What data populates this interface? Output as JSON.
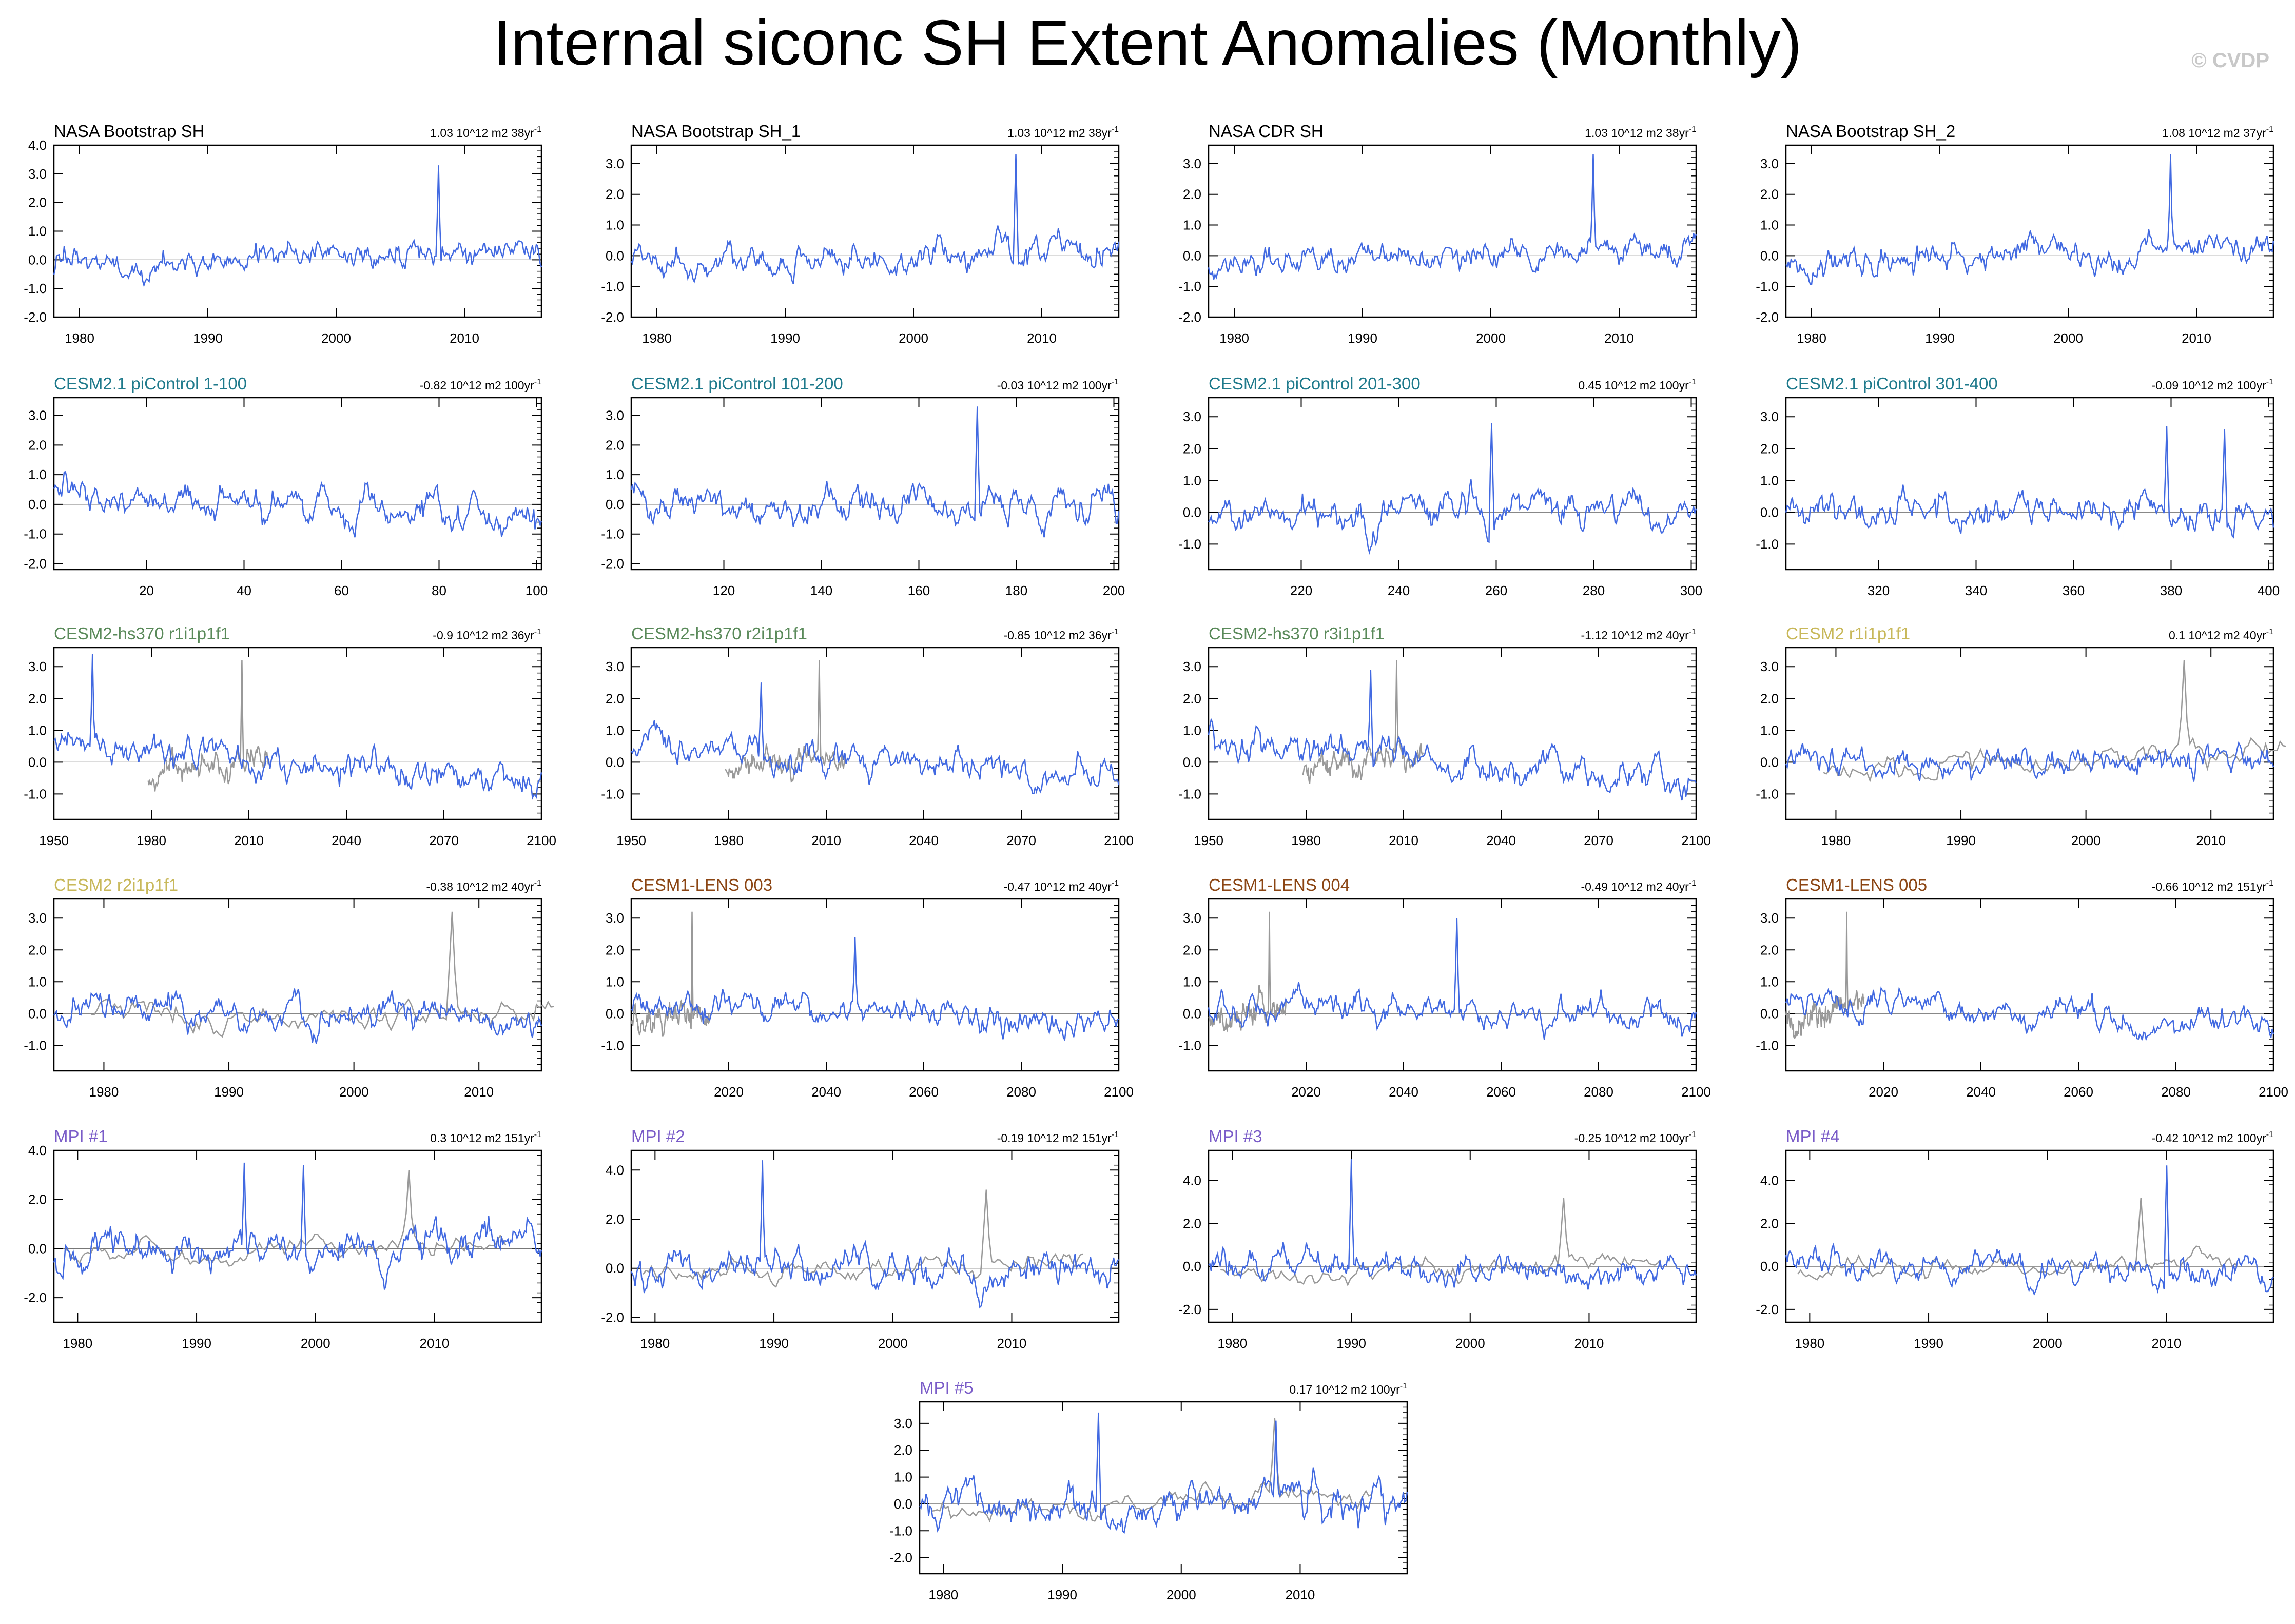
{
  "title": "Internal siconc SH Extent Anomalies (Monthly)",
  "credit": "© CVDP",
  "colors": {
    "line_main": "#4169e1",
    "line_obs": "#999999",
    "nasa": "#000000",
    "cesm21_pi": "#1f7a8c",
    "cesm2_hs370": "#5a8a5a",
    "cesm2": "#c8b85a",
    "cesm1_lens": "#8b4513",
    "mpi": "#7a5cc8"
  },
  "chart_data": [
    {
      "type": "line",
      "title": "NASA Bootstrap SH",
      "trend": "1.03 10^12 m2 38yr",
      "trend_sup": "-1",
      "xlim": [
        1978,
        2016
      ],
      "ylim": [
        -2,
        4
      ],
      "xticks": [
        "1980",
        "1990",
        "2000",
        "2010"
      ],
      "xtickvals": [
        1980,
        1990,
        2000,
        2010
      ],
      "yticks": [
        "4.0",
        "3.0",
        "2.0",
        "1.0",
        "0.0",
        "-1.0",
        "-2.0"
      ],
      "ytickvals": [
        4,
        3,
        2,
        1,
        0,
        -1,
        -2
      ],
      "obs": false,
      "color": "nasa",
      "seed": 11,
      "amp": 0.55,
      "trend_slope": 0.6,
      "spikes": [
        [
          2008,
          3.3
        ]
      ]
    },
    {
      "type": "line",
      "title": "NASA Bootstrap SH_1",
      "trend": "1.03 10^12 m2 38yr",
      "trend_sup": "-1",
      "xlim": [
        1978,
        2016
      ],
      "ylim": [
        -2,
        3.6
      ],
      "xticks": [
        "1980",
        "1990",
        "2000",
        "2010"
      ],
      "xtickvals": [
        1980,
        1990,
        2000,
        2010
      ],
      "yticks": [
        "3.0",
        "2.0",
        "1.0",
        "0.0",
        "-1.0",
        "-2.0"
      ],
      "ytickvals": [
        3,
        2,
        1,
        0,
        -1,
        -2
      ],
      "obs": false,
      "color": "nasa",
      "seed": 12,
      "amp": 0.55,
      "trend_slope": 0.6,
      "spikes": [
        [
          2008,
          3.3
        ]
      ]
    },
    {
      "type": "line",
      "title": "NASA CDR SH",
      "trend": "1.03 10^12 m2 38yr",
      "trend_sup": "-1",
      "xlim": [
        1978,
        2016
      ],
      "ylim": [
        -2,
        3.6
      ],
      "xticks": [
        "1980",
        "1990",
        "2000",
        "2010"
      ],
      "xtickvals": [
        1980,
        1990,
        2000,
        2010
      ],
      "yticks": [
        "3.0",
        "2.0",
        "1.0",
        "0.0",
        "-1.0",
        "-2.0"
      ],
      "ytickvals": [
        3,
        2,
        1,
        0,
        -1,
        -2
      ],
      "obs": false,
      "color": "nasa",
      "seed": 13,
      "amp": 0.55,
      "trend_slope": 0.6,
      "spikes": [
        [
          2008,
          3.3
        ]
      ]
    },
    {
      "type": "line",
      "title": "NASA Bootstrap SH_2",
      "trend": "1.08 10^12 m2 37yr",
      "trend_sup": "-1",
      "xlim": [
        1978,
        2016
      ],
      "ylim": [
        -2,
        3.6
      ],
      "xticks": [
        "1980",
        "1990",
        "2000",
        "2010"
      ],
      "xtickvals": [
        1980,
        1990,
        2000,
        2010
      ],
      "yticks": [
        "3.0",
        "2.0",
        "1.0",
        "0.0",
        "-1.0",
        "-2.0"
      ],
      "ytickvals": [
        3,
        2,
        1,
        0,
        -1,
        -2
      ],
      "obs": false,
      "color": "nasa",
      "seed": 14,
      "amp": 0.55,
      "trend_slope": 0.6,
      "spikes": [
        [
          2008,
          3.3
        ]
      ]
    },
    {
      "type": "line",
      "title": "CESM2.1 piControl 1-100",
      "trend": "-0.82 10^12 m2 100yr",
      "trend_sup": "-1",
      "xlim": [
        1,
        101
      ],
      "ylim": [
        -2.2,
        3.6
      ],
      "xticks": [
        "20",
        "40",
        "60",
        "80",
        "100"
      ],
      "xtickvals": [
        20,
        40,
        60,
        80,
        100
      ],
      "yticks": [
        "3.0",
        "2.0",
        "1.0",
        "0.0",
        "-1.0",
        "-2.0"
      ],
      "ytickvals": [
        3,
        2,
        1,
        0,
        -1,
        -2
      ],
      "obs": false,
      "color": "cesm21_pi",
      "seed": 21,
      "amp": 0.7,
      "trend_slope": -0.8,
      "spikes": []
    },
    {
      "type": "line",
      "title": "CESM2.1 piControl 101-200",
      "trend": "-0.03 10^12 m2 100yr",
      "trend_sup": "-1",
      "xlim": [
        101,
        201
      ],
      "ylim": [
        -2.2,
        3.6
      ],
      "xticks": [
        "120",
        "140",
        "160",
        "180",
        "200"
      ],
      "xtickvals": [
        120,
        140,
        160,
        180,
        200
      ],
      "yticks": [
        "3.0",
        "2.0",
        "1.0",
        "0.0",
        "-1.0",
        "-2.0"
      ],
      "ytickvals": [
        3,
        2,
        1,
        0,
        -1,
        -2
      ],
      "obs": false,
      "color": "cesm21_pi",
      "seed": 22,
      "amp": 0.7,
      "trend_slope": 0,
      "spikes": [
        [
          172,
          3.3
        ]
      ]
    },
    {
      "type": "line",
      "title": "CESM2.1 piControl 201-300",
      "trend": "0.45 10^12 m2 100yr",
      "trend_sup": "-1",
      "xlim": [
        201,
        301
      ],
      "ylim": [
        -1.8,
        3.6
      ],
      "xticks": [
        "220",
        "240",
        "260",
        "280",
        "300"
      ],
      "xtickvals": [
        220,
        240,
        260,
        280,
        300
      ],
      "yticks": [
        "3.0",
        "2.0",
        "1.0",
        "0.0",
        "-1.0"
      ],
      "ytickvals": [
        3,
        2,
        1,
        0,
        -1
      ],
      "obs": false,
      "color": "cesm21_pi",
      "seed": 23,
      "amp": 0.6,
      "trend_slope": 0.4,
      "spikes": [
        [
          259,
          2.8
        ]
      ]
    },
    {
      "type": "line",
      "title": "CESM2.1 piControl 301-400",
      "trend": "-0.09 10^12 m2 100yr",
      "trend_sup": "-1",
      "xlim": [
        301,
        401
      ],
      "ylim": [
        -1.8,
        3.6
      ],
      "xticks": [
        "320",
        "340",
        "360",
        "380",
        "400"
      ],
      "xtickvals": [
        320,
        340,
        360,
        380,
        400
      ],
      "yticks": [
        "3.0",
        "2.0",
        "1.0",
        "0.0",
        "-1.0"
      ],
      "ytickvals": [
        3,
        2,
        1,
        0,
        -1
      ],
      "obs": false,
      "color": "cesm21_pi",
      "seed": 24,
      "amp": 0.6,
      "trend_slope": 0,
      "spikes": [
        [
          379,
          2.7
        ],
        [
          391,
          2.6
        ]
      ]
    },
    {
      "type": "line",
      "title": "CESM2-hs370 r1i1p1f1",
      "trend": "-0.9 10^12 m2 36yr",
      "trend_sup": "-1",
      "xlim": [
        1950,
        2100
      ],
      "ylim": [
        -1.8,
        3.6
      ],
      "xticks": [
        "1950",
        "1980",
        "2010",
        "2040",
        "2070",
        "2100"
      ],
      "xtickvals": [
        1950,
        1980,
        2010,
        2040,
        2070,
        2100
      ],
      "yticks": [
        "3.0",
        "2.0",
        "1.0",
        "0.0",
        "-1.0"
      ],
      "ytickvals": [
        3,
        2,
        1,
        0,
        -1
      ],
      "obs": true,
      "obs_range": [
        1979,
        2016
      ],
      "color": "cesm2_hs370",
      "seed": 31,
      "amp": 0.6,
      "trend_slope": -1.2,
      "spikes": [
        [
          1962,
          3.4
        ]
      ]
    },
    {
      "type": "line",
      "title": "CESM2-hs370 r2i1p1f1",
      "trend": "-0.85 10^12 m2 36yr",
      "trend_sup": "-1",
      "xlim": [
        1950,
        2100
      ],
      "ylim": [
        -1.8,
        3.6
      ],
      "xticks": [
        "1950",
        "1980",
        "2010",
        "2040",
        "2070",
        "2100"
      ],
      "xtickvals": [
        1950,
        1980,
        2010,
        2040,
        2070,
        2100
      ],
      "yticks": [
        "3.0",
        "2.0",
        "1.0",
        "0.0",
        "-1.0"
      ],
      "ytickvals": [
        3,
        2,
        1,
        0,
        -1
      ],
      "obs": true,
      "obs_range": [
        1979,
        2016
      ],
      "color": "cesm2_hs370",
      "seed": 32,
      "amp": 0.55,
      "trend_slope": -1,
      "spikes": [
        [
          1990,
          2.5
        ]
      ]
    },
    {
      "type": "line",
      "title": "CESM2-hs370 r3i1p1f1",
      "trend": "-1.12 10^12 m2 40yr",
      "trend_sup": "-1",
      "xlim": [
        1950,
        2100
      ],
      "ylim": [
        -1.8,
        3.6
      ],
      "xticks": [
        "1950",
        "1980",
        "2010",
        "2040",
        "2070",
        "2100"
      ],
      "xtickvals": [
        1950,
        1980,
        2010,
        2040,
        2070,
        2100
      ],
      "yticks": [
        "3.0",
        "2.0",
        "1.0",
        "0.0",
        "-1.0"
      ],
      "ytickvals": [
        3,
        2,
        1,
        0,
        -1
      ],
      "obs": true,
      "obs_range": [
        1979,
        2016
      ],
      "color": "cesm2_hs370",
      "seed": 33,
      "amp": 0.6,
      "trend_slope": -1.3,
      "spikes": [
        [
          2000,
          2.9
        ]
      ]
    },
    {
      "type": "line",
      "title": "CESM2 r1i1p1f1",
      "trend": "0.1 10^12 m2 40yr",
      "trend_sup": "-1",
      "xlim": [
        1976,
        2015
      ],
      "ylim": [
        -1.8,
        3.6
      ],
      "xticks": [
        "1980",
        "1990",
        "2000",
        "2010"
      ],
      "xtickvals": [
        1980,
        1990,
        2000,
        2010
      ],
      "yticks": [
        "3.0",
        "2.0",
        "1.0",
        "0.0",
        "-1.0"
      ],
      "ytickvals": [
        3,
        2,
        1,
        0,
        -1
      ],
      "obs": true,
      "obs_range": [
        1979,
        2016
      ],
      "color": "cesm2",
      "seed": 34,
      "amp": 0.5,
      "trend_slope": 0.1,
      "spikes": []
    },
    {
      "type": "line",
      "title": "CESM2 r2i1p1f1",
      "trend": "-0.38 10^12 m2 40yr",
      "trend_sup": "-1",
      "xlim": [
        1976,
        2015
      ],
      "ylim": [
        -1.8,
        3.6
      ],
      "xticks": [
        "1980",
        "1990",
        "2000",
        "2010"
      ],
      "xtickvals": [
        1980,
        1990,
        2000,
        2010
      ],
      "yticks": [
        "3.0",
        "2.0",
        "1.0",
        "0.0",
        "-1.0"
      ],
      "ytickvals": [
        3,
        2,
        1,
        0,
        -1
      ],
      "obs": true,
      "obs_range": [
        1979,
        2016
      ],
      "color": "cesm2",
      "seed": 41,
      "amp": 0.55,
      "trend_slope": -0.4,
      "spikes": []
    },
    {
      "type": "line",
      "title": "CESM1-LENS 003",
      "trend": "-0.47 10^12 m2 40yr",
      "trend_sup": "-1",
      "xlim": [
        2000,
        2100
      ],
      "ylim": [
        -1.8,
        3.6
      ],
      "xticks": [
        "2020",
        "2040",
        "2060",
        "2080",
        "2100"
      ],
      "xtickvals": [
        2020,
        2040,
        2060,
        2080,
        2100
      ],
      "yticks": [
        "3.0",
        "2.0",
        "1.0",
        "0.0",
        "-1.0"
      ],
      "ytickvals": [
        3,
        2,
        1,
        0,
        -1
      ],
      "obs": true,
      "obs_range": [
        2000,
        2016
      ],
      "color": "cesm1_lens",
      "seed": 42,
      "amp": 0.5,
      "trend_slope": -0.6,
      "spikes": [
        [
          2046,
          2.4
        ]
      ]
    },
    {
      "type": "line",
      "title": "CESM1-LENS 004",
      "trend": "-0.49 10^12 m2 40yr",
      "trend_sup": "-1",
      "xlim": [
        2000,
        2100
      ],
      "ylim": [
        -1.8,
        3.6
      ],
      "xticks": [
        "2020",
        "2040",
        "2060",
        "2080",
        "2100"
      ],
      "xtickvals": [
        2020,
        2040,
        2060,
        2080,
        2100
      ],
      "yticks": [
        "3.0",
        "2.0",
        "1.0",
        "0.0",
        "-1.0"
      ],
      "ytickvals": [
        3,
        2,
        1,
        0,
        -1
      ],
      "obs": true,
      "obs_range": [
        2000,
        2016
      ],
      "color": "cesm1_lens",
      "seed": 43,
      "amp": 0.5,
      "trend_slope": -0.6,
      "spikes": [
        [
          2051,
          3.0
        ]
      ]
    },
    {
      "type": "line",
      "title": "CESM1-LENS 005",
      "trend": "-0.66 10^12 m2 151yr",
      "trend_sup": "-1",
      "xlim": [
        2000,
        2100
      ],
      "ylim": [
        -1.8,
        3.6
      ],
      "xticks": [
        "2020",
        "2040",
        "2060",
        "2080",
        "2100"
      ],
      "xtickvals": [
        2020,
        2040,
        2060,
        2080,
        2100
      ],
      "yticks": [
        "3.0",
        "2.0",
        "1.0",
        "0.0",
        "-1.0"
      ],
      "ytickvals": [
        3,
        2,
        1,
        0,
        -1
      ],
      "obs": true,
      "obs_range": [
        2000,
        2016
      ],
      "color": "cesm1_lens",
      "seed": 44,
      "amp": 0.5,
      "trend_slope": -0.7,
      "spikes": []
    },
    {
      "type": "line",
      "title": "MPI #1",
      "trend": "0.3 10^12 m2 151yr",
      "trend_sup": "-1",
      "xlim": [
        1978,
        2019
      ],
      "ylim": [
        -3,
        4
      ],
      "xticks": [
        "1980",
        "1990",
        "2000",
        "2010"
      ],
      "xtickvals": [
        1980,
        1990,
        2000,
        2010
      ],
      "yticks": [
        "4.0",
        "2.0",
        "0.0",
        "-2.0"
      ],
      "ytickvals": [
        4,
        2,
        0,
        -2
      ],
      "obs": true,
      "obs_range": [
        1979,
        2016
      ],
      "color": "mpi",
      "seed": 51,
      "amp": 0.9,
      "trend_slope": 0.3,
      "spikes": [
        [
          1994,
          3.5
        ],
        [
          1999,
          3.4
        ]
      ]
    },
    {
      "type": "line",
      "title": "MPI #2",
      "trend": "-0.19 10^12 m2 151yr",
      "trend_sup": "-1",
      "xlim": [
        1978,
        2019
      ],
      "ylim": [
        -2.2,
        4.8
      ],
      "xticks": [
        "1980",
        "1990",
        "2000",
        "2010"
      ],
      "xtickvals": [
        1980,
        1990,
        2000,
        2010
      ],
      "yticks": [
        "4.0",
        "2.0",
        "0.0",
        "-2.0"
      ],
      "ytickvals": [
        4,
        2,
        0,
        -2
      ],
      "obs": true,
      "obs_range": [
        1979,
        2016
      ],
      "color": "mpi",
      "seed": 52,
      "amp": 0.8,
      "trend_slope": -0.2,
      "spikes": [
        [
          1989,
          4.4
        ]
      ]
    },
    {
      "type": "line",
      "title": "MPI #3",
      "trend": "-0.25 10^12 m2 100yr",
      "trend_sup": "-1",
      "xlim": [
        1978,
        2019
      ],
      "ylim": [
        -2.6,
        5.4
      ],
      "xticks": [
        "1980",
        "1990",
        "2000",
        "2010"
      ],
      "xtickvals": [
        1980,
        1990,
        2000,
        2010
      ],
      "yticks": [
        "4.0",
        "2.0",
        "0.0",
        "-2.0"
      ],
      "ytickvals": [
        4,
        2,
        0,
        -2
      ],
      "obs": true,
      "obs_range": [
        1979,
        2016
      ],
      "color": "mpi",
      "seed": 53,
      "amp": 0.8,
      "trend_slope": -0.25,
      "spikes": [
        [
          1990,
          5.0
        ]
      ]
    },
    {
      "type": "line",
      "title": "MPI #4",
      "trend": "-0.42 10^12 m2 100yr",
      "trend_sup": "-1",
      "xlim": [
        1978,
        2019
      ],
      "ylim": [
        -2.6,
        5.4
      ],
      "xticks": [
        "1980",
        "1990",
        "2000",
        "2010"
      ],
      "xtickvals": [
        1980,
        1990,
        2000,
        2010
      ],
      "yticks": [
        "4.0",
        "2.0",
        "0.0",
        "-2.0"
      ],
      "ytickvals": [
        4,
        2,
        0,
        -2
      ],
      "obs": true,
      "obs_range": [
        1979,
        2016
      ],
      "color": "mpi",
      "seed": 54,
      "amp": 0.8,
      "trend_slope": -0.4,
      "spikes": [
        [
          2010,
          4.7
        ]
      ]
    },
    {
      "type": "line",
      "title": "MPI #5",
      "trend": "0.17 10^12 m2 100yr",
      "trend_sup": "-1",
      "xlim": [
        1978,
        2019
      ],
      "ylim": [
        -2.6,
        3.8
      ],
      "xticks": [
        "1980",
        "1990",
        "2000",
        "2010"
      ],
      "xtickvals": [
        1980,
        1990,
        2000,
        2010
      ],
      "yticks": [
        "3.0",
        "2.0",
        "1.0",
        "0.0",
        "-1.0",
        "-2.0"
      ],
      "ytickvals": [
        3,
        2,
        1,
        0,
        -1,
        -2
      ],
      "obs": true,
      "obs_range": [
        1979,
        2016
      ],
      "color": "mpi",
      "seed": 55,
      "amp": 0.9,
      "trend_slope": 0.2,
      "spikes": [
        [
          1993,
          3.4
        ],
        [
          2008,
          3.1
        ]
      ]
    }
  ]
}
